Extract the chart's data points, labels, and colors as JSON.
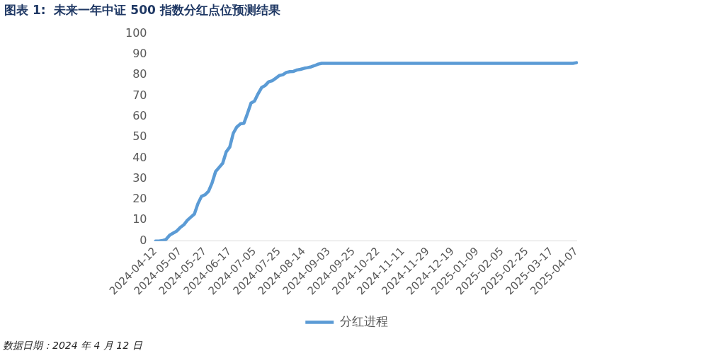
{
  "chart_data": {
    "type": "line",
    "title": "图表 1:  未来一年中证 500 指数分红点位预测结果",
    "categories": [
      "2024-04-12",
      null,
      null,
      null,
      null,
      null,
      null,
      "2024-05-07",
      null,
      null,
      null,
      null,
      null,
      null,
      "2024-05-27",
      null,
      null,
      null,
      null,
      null,
      null,
      "2024-06-17",
      null,
      null,
      null,
      null,
      null,
      null,
      "2024-07-05",
      null,
      null,
      null,
      null,
      null,
      null,
      "2024-07-25",
      null,
      null,
      null,
      null,
      null,
      null,
      "2024-08-14",
      null,
      null,
      null,
      null,
      null,
      null,
      "2024-09-03",
      null,
      null,
      null,
      null,
      null,
      null,
      "2024-09-25",
      null,
      null,
      null,
      null,
      null,
      null,
      "2024-10-22",
      null,
      null,
      null,
      null,
      null,
      null,
      "2024-11-11",
      null,
      null,
      null,
      null,
      null,
      null,
      "2024-11-29",
      null,
      null,
      null,
      null,
      null,
      null,
      "2024-12-19",
      null,
      null,
      null,
      null,
      null,
      null,
      "2025-01-09",
      null,
      null,
      null,
      null,
      null,
      null,
      "2025-02-05",
      null,
      null,
      null,
      null,
      null,
      null,
      "2025-02-25",
      null,
      null,
      null,
      null,
      null,
      null,
      "2025-03-17",
      null,
      null,
      null,
      null,
      null,
      null,
      "2025-04-07"
    ],
    "series": [
      {
        "name": "分红进程",
        "color": "#5b9bd5",
        "values": [
          0,
          0,
          0.2,
          0.8,
          2.8,
          3.8,
          4.8,
          6.5,
          7.8,
          10,
          11.5,
          13,
          18,
          21.5,
          22.3,
          24,
          28,
          33.5,
          35.5,
          37.5,
          43,
          45.3,
          52,
          55,
          56.5,
          56.8,
          61.5,
          66.5,
          67.5,
          71,
          74,
          75,
          76.8,
          77.3,
          78.5,
          79.8,
          80.2,
          81.3,
          81.7,
          81.8,
          82.5,
          82.8,
          83.3,
          83.6,
          84,
          84.6,
          85.3,
          85.7,
          85.7,
          85.7,
          85.7,
          85.7,
          85.7,
          85.7,
          85.7,
          85.7,
          85.7,
          85.7,
          85.7,
          85.7,
          85.7,
          85.7,
          85.7,
          85.7,
          85.7,
          85.7,
          85.7,
          85.7,
          85.7,
          85.7,
          85.7,
          85.7,
          85.7,
          85.7,
          85.7,
          85.7,
          85.7,
          85.7,
          85.7,
          85.7,
          85.7,
          85.7,
          85.7,
          85.7,
          85.7,
          85.7,
          85.7,
          85.7,
          85.7,
          85.7,
          85.7,
          85.7,
          85.7,
          85.7,
          85.7,
          85.7,
          85.7,
          85.7,
          85.7,
          85.7,
          85.7,
          85.7,
          85.7,
          85.7,
          85.7,
          85.7,
          85.7,
          85.7,
          85.7,
          85.7,
          85.7,
          85.7,
          85.7,
          85.7,
          85.7,
          85.7,
          85.7,
          85.7,
          85.7,
          86
        ]
      }
    ],
    "ylim": [
      0,
      100
    ],
    "yticks": [
      0,
      10,
      20,
      30,
      40,
      50,
      60,
      70,
      80,
      90,
      100
    ],
    "grid": false,
    "legend": "bottom",
    "marker": "none",
    "line_style": "solid",
    "annotations": [
      "数据日期：2024 年 4 月 12 日"
    ]
  }
}
